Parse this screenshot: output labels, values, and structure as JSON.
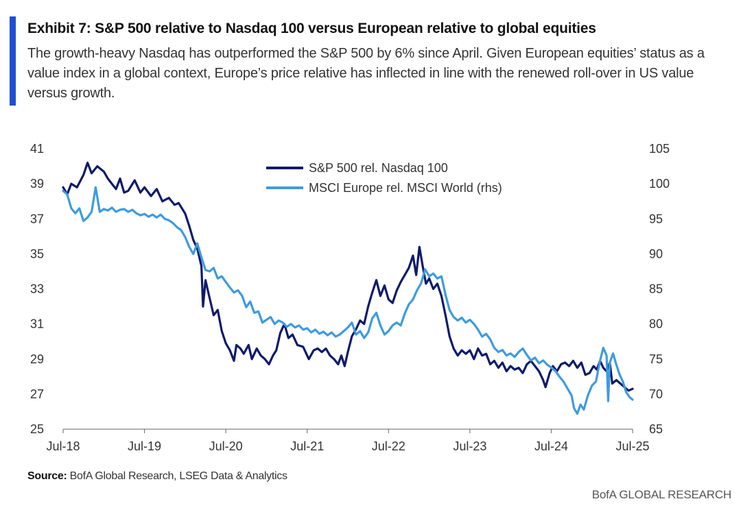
{
  "exhibit": {
    "title": "Exhibit 7: S&P 500 relative to Nasdaq 100 versus European relative to global equities",
    "subtitle": "The growth-heavy Nasdaq has outperformed the S&P 500 by 6% since April. Given European equities’ status as a value index in a global context, Europe’s price relative has inflected in line with the renewed roll-over in US value versus growth."
  },
  "footer": {
    "source_label": "Source:",
    "source_text": " BofA Global Research, LSEG Data & Analytics",
    "brand": "BofA GLOBAL RESEARCH"
  },
  "colors": {
    "accent": "#1f4fd1",
    "series_dark": "#0d1a6b",
    "series_light": "#3d9be0"
  },
  "chart_data": {
    "type": "line",
    "title": "",
    "x_start": 2018.5,
    "x_end": 2025.5,
    "x_ticks": [
      {
        "x": 2018.5,
        "label": "Jul-18"
      },
      {
        "x": 2019.5,
        "label": "Jul-19"
      },
      {
        "x": 2020.5,
        "label": "Jul-20"
      },
      {
        "x": 2021.5,
        "label": "Jul-21"
      },
      {
        "x": 2022.5,
        "label": "Jul-22"
      },
      {
        "x": 2023.5,
        "label": "Jul-23"
      },
      {
        "x": 2024.5,
        "label": "Jul-24"
      },
      {
        "x": 2025.5,
        "label": "Jul-25"
      }
    ],
    "y_left": {
      "min": 25,
      "max": 41,
      "ticks": [
        25,
        27,
        29,
        31,
        33,
        35,
        37,
        39,
        41
      ]
    },
    "y_right": {
      "min": 65,
      "max": 105,
      "ticks": [
        65,
        70,
        75,
        80,
        85,
        90,
        95,
        100,
        105
      ]
    },
    "grid": false,
    "legend_position": "top-center",
    "series": [
      {
        "name": "S&P 500 rel. Nasdaq 100",
        "axis": "left",
        "color": "#0d1a6b",
        "points": [
          [
            2018.5,
            38.8
          ],
          [
            2018.55,
            38.4
          ],
          [
            2018.6,
            39.0
          ],
          [
            2018.67,
            38.8
          ],
          [
            2018.75,
            39.5
          ],
          [
            2018.8,
            40.2
          ],
          [
            2018.85,
            39.6
          ],
          [
            2018.92,
            40.0
          ],
          [
            2019.0,
            39.7
          ],
          [
            2019.05,
            39.3
          ],
          [
            2019.1,
            39.0
          ],
          [
            2019.15,
            38.7
          ],
          [
            2019.2,
            39.3
          ],
          [
            2019.25,
            38.5
          ],
          [
            2019.3,
            38.6
          ],
          [
            2019.38,
            39.2
          ],
          [
            2019.45,
            38.5
          ],
          [
            2019.5,
            38.8
          ],
          [
            2019.58,
            38.3
          ],
          [
            2019.65,
            38.7
          ],
          [
            2019.72,
            38.0
          ],
          [
            2019.8,
            38.2
          ],
          [
            2019.87,
            37.8
          ],
          [
            2019.92,
            37.9
          ],
          [
            2020.0,
            37.3
          ],
          [
            2020.05,
            36.6
          ],
          [
            2020.1,
            35.8
          ],
          [
            2020.15,
            35.3
          ],
          [
            2020.2,
            34.3
          ],
          [
            2020.22,
            32.0
          ],
          [
            2020.25,
            33.5
          ],
          [
            2020.3,
            32.5
          ],
          [
            2020.35,
            31.5
          ],
          [
            2020.4,
            31.8
          ],
          [
            2020.45,
            30.6
          ],
          [
            2020.5,
            29.9
          ],
          [
            2020.55,
            29.5
          ],
          [
            2020.6,
            28.9
          ],
          [
            2020.63,
            29.8
          ],
          [
            2020.68,
            29.6
          ],
          [
            2020.72,
            29.3
          ],
          [
            2020.78,
            29.8
          ],
          [
            2020.82,
            29.0
          ],
          [
            2020.88,
            29.6
          ],
          [
            2020.93,
            29.2
          ],
          [
            2020.98,
            29.0
          ],
          [
            2021.03,
            28.7
          ],
          [
            2021.08,
            29.2
          ],
          [
            2021.12,
            29.5
          ],
          [
            2021.17,
            30.5
          ],
          [
            2021.22,
            31.0
          ],
          [
            2021.27,
            30.2
          ],
          [
            2021.32,
            30.4
          ],
          [
            2021.38,
            29.8
          ],
          [
            2021.45,
            29.7
          ],
          [
            2021.52,
            29.0
          ],
          [
            2021.58,
            29.5
          ],
          [
            2021.63,
            29.6
          ],
          [
            2021.68,
            29.4
          ],
          [
            2021.73,
            29.6
          ],
          [
            2021.78,
            29.2
          ],
          [
            2021.83,
            29.0
          ],
          [
            2021.88,
            28.7
          ],
          [
            2021.92,
            29.2
          ],
          [
            2021.96,
            28.6
          ],
          [
            2022.0,
            29.4
          ],
          [
            2022.05,
            30.3
          ],
          [
            2022.1,
            30.7
          ],
          [
            2022.15,
            31.2
          ],
          [
            2022.2,
            31.0
          ],
          [
            2022.25,
            32.0
          ],
          [
            2022.3,
            32.8
          ],
          [
            2022.35,
            33.5
          ],
          [
            2022.4,
            32.6
          ],
          [
            2022.45,
            33.2
          ],
          [
            2022.5,
            32.4
          ],
          [
            2022.55,
            32.2
          ],
          [
            2022.6,
            32.9
          ],
          [
            2022.65,
            33.4
          ],
          [
            2022.7,
            33.8
          ],
          [
            2022.75,
            34.2
          ],
          [
            2022.8,
            34.9
          ],
          [
            2022.84,
            33.8
          ],
          [
            2022.88,
            35.4
          ],
          [
            2022.92,
            34.3
          ],
          [
            2022.96,
            33.3
          ],
          [
            2023.0,
            33.6
          ],
          [
            2023.05,
            33.0
          ],
          [
            2023.1,
            33.3
          ],
          [
            2023.15,
            32.6
          ],
          [
            2023.2,
            31.5
          ],
          [
            2023.25,
            30.3
          ],
          [
            2023.3,
            29.6
          ],
          [
            2023.35,
            29.2
          ],
          [
            2023.4,
            29.5
          ],
          [
            2023.45,
            29.3
          ],
          [
            2023.5,
            29.5
          ],
          [
            2023.55,
            29.0
          ],
          [
            2023.6,
            29.6
          ],
          [
            2023.65,
            29.2
          ],
          [
            2023.7,
            29.3
          ],
          [
            2023.75,
            28.7
          ],
          [
            2023.8,
            28.9
          ],
          [
            2023.85,
            28.5
          ],
          [
            2023.9,
            28.8
          ],
          [
            2023.95,
            28.3
          ],
          [
            2024.0,
            28.6
          ],
          [
            2024.05,
            28.4
          ],
          [
            2024.1,
            28.5
          ],
          [
            2024.15,
            28.2
          ],
          [
            2024.2,
            28.7
          ],
          [
            2024.25,
            28.9
          ],
          [
            2024.3,
            28.6
          ],
          [
            2024.35,
            28.3
          ],
          [
            2024.4,
            27.8
          ],
          [
            2024.43,
            27.4
          ],
          [
            2024.48,
            28.2
          ],
          [
            2024.52,
            28.6
          ],
          [
            2024.57,
            28.3
          ],
          [
            2024.62,
            28.7
          ],
          [
            2024.67,
            28.8
          ],
          [
            2024.72,
            28.6
          ],
          [
            2024.77,
            28.9
          ],
          [
            2024.82,
            28.5
          ],
          [
            2024.87,
            28.8
          ],
          [
            2024.92,
            28.1
          ],
          [
            2024.97,
            28.2
          ],
          [
            2025.02,
            28.6
          ],
          [
            2025.06,
            28.4
          ],
          [
            2025.1,
            28.9
          ],
          [
            2025.14,
            28.5
          ],
          [
            2025.18,
            28.3
          ],
          [
            2025.22,
            28.8
          ],
          [
            2025.25,
            27.6
          ],
          [
            2025.3,
            27.8
          ],
          [
            2025.35,
            27.6
          ],
          [
            2025.4,
            27.4
          ],
          [
            2025.45,
            27.2
          ],
          [
            2025.5,
            27.3
          ]
        ]
      },
      {
        "name": "MSCI Europe rel. MSCI World (rhs)",
        "axis": "right",
        "color": "#3d9be0",
        "points": [
          [
            2018.5,
            99.0
          ],
          [
            2018.55,
            98.5
          ],
          [
            2018.6,
            96.5
          ],
          [
            2018.65,
            95.8
          ],
          [
            2018.7,
            96.5
          ],
          [
            2018.75,
            94.7
          ],
          [
            2018.8,
            95.2
          ],
          [
            2018.85,
            96.0
          ],
          [
            2018.9,
            99.5
          ],
          [
            2018.95,
            96.0
          ],
          [
            2019.0,
            96.4
          ],
          [
            2019.05,
            96.2
          ],
          [
            2019.1,
            96.6
          ],
          [
            2019.15,
            96.0
          ],
          [
            2019.2,
            96.3
          ],
          [
            2019.25,
            96.4
          ],
          [
            2019.3,
            96.0
          ],
          [
            2019.35,
            96.3
          ],
          [
            2019.4,
            95.8
          ],
          [
            2019.45,
            95.5
          ],
          [
            2019.5,
            95.7
          ],
          [
            2019.55,
            95.3
          ],
          [
            2019.6,
            95.6
          ],
          [
            2019.65,
            95.2
          ],
          [
            2019.7,
            95.6
          ],
          [
            2019.75,
            95.0
          ],
          [
            2019.8,
            94.8
          ],
          [
            2019.85,
            94.4
          ],
          [
            2019.9,
            93.8
          ],
          [
            2019.95,
            93.4
          ],
          [
            2020.0,
            92.4
          ],
          [
            2020.05,
            91.0
          ],
          [
            2020.1,
            90.0
          ],
          [
            2020.15,
            91.5
          ],
          [
            2020.2,
            89.5
          ],
          [
            2020.25,
            87.7
          ],
          [
            2020.3,
            87.5
          ],
          [
            2020.35,
            88.0
          ],
          [
            2020.4,
            86.5
          ],
          [
            2020.45,
            86.8
          ],
          [
            2020.5,
            86.0
          ],
          [
            2020.55,
            85.2
          ],
          [
            2020.6,
            84.5
          ],
          [
            2020.65,
            84.8
          ],
          [
            2020.7,
            84.0
          ],
          [
            2020.75,
            82.4
          ],
          [
            2020.8,
            83.2
          ],
          [
            2020.85,
            81.6
          ],
          [
            2020.9,
            81.8
          ],
          [
            2020.95,
            80.2
          ],
          [
            2021.0,
            80.6
          ],
          [
            2021.05,
            81.0
          ],
          [
            2021.1,
            80.0
          ],
          [
            2021.15,
            80.5
          ],
          [
            2021.2,
            80.2
          ],
          [
            2021.25,
            79.6
          ],
          [
            2021.3,
            80.0
          ],
          [
            2021.35,
            79.5
          ],
          [
            2021.4,
            79.8
          ],
          [
            2021.45,
            79.2
          ],
          [
            2021.5,
            79.4
          ],
          [
            2021.55,
            78.8
          ],
          [
            2021.6,
            79.2
          ],
          [
            2021.65,
            78.6
          ],
          [
            2021.7,
            78.9
          ],
          [
            2021.75,
            78.4
          ],
          [
            2021.8,
            78.8
          ],
          [
            2021.85,
            78.2
          ],
          [
            2021.9,
            78.5
          ],
          [
            2021.95,
            79.0
          ],
          [
            2022.0,
            79.5
          ],
          [
            2022.05,
            80.2
          ],
          [
            2022.1,
            78.5
          ],
          [
            2022.15,
            79.0
          ],
          [
            2022.2,
            78.0
          ],
          [
            2022.25,
            78.8
          ],
          [
            2022.3,
            80.8
          ],
          [
            2022.35,
            81.6
          ],
          [
            2022.4,
            79.8
          ],
          [
            2022.45,
            78.5
          ],
          [
            2022.5,
            79.0
          ],
          [
            2022.55,
            79.8
          ],
          [
            2022.6,
            80.2
          ],
          [
            2022.65,
            79.8
          ],
          [
            2022.7,
            81.5
          ],
          [
            2022.75,
            82.8
          ],
          [
            2022.8,
            83.5
          ],
          [
            2022.85,
            84.8
          ],
          [
            2022.9,
            85.8
          ],
          [
            2022.95,
            87.8
          ],
          [
            2023.0,
            86.8
          ],
          [
            2023.05,
            87.2
          ],
          [
            2023.1,
            86.5
          ],
          [
            2023.15,
            86.8
          ],
          [
            2023.2,
            84.2
          ],
          [
            2023.25,
            82.0
          ],
          [
            2023.3,
            81.0
          ],
          [
            2023.35,
            80.5
          ],
          [
            2023.4,
            80.9
          ],
          [
            2023.45,
            80.2
          ],
          [
            2023.5,
            80.6
          ],
          [
            2023.55,
            80.0
          ],
          [
            2023.6,
            79.2
          ],
          [
            2023.65,
            78.2
          ],
          [
            2023.7,
            78.6
          ],
          [
            2023.75,
            77.8
          ],
          [
            2023.8,
            76.6
          ],
          [
            2023.85,
            76.0
          ],
          [
            2023.9,
            76.3
          ],
          [
            2023.95,
            75.5
          ],
          [
            2024.0,
            75.8
          ],
          [
            2024.05,
            75.3
          ],
          [
            2024.1,
            76.0
          ],
          [
            2024.15,
            76.5
          ],
          [
            2024.2,
            75.6
          ],
          [
            2024.25,
            74.8
          ],
          [
            2024.3,
            75.2
          ],
          [
            2024.35,
            74.4
          ],
          [
            2024.4,
            74.8
          ],
          [
            2024.45,
            74.2
          ],
          [
            2024.5,
            73.8
          ],
          [
            2024.55,
            73.3
          ],
          [
            2024.6,
            72.5
          ],
          [
            2024.65,
            71.8
          ],
          [
            2024.7,
            70.8
          ],
          [
            2024.75,
            69.8
          ],
          [
            2024.78,
            68.0
          ],
          [
            2024.82,
            67.2
          ],
          [
            2024.86,
            68.5
          ],
          [
            2024.9,
            67.8
          ],
          [
            2024.95,
            69.8
          ],
          [
            2025.0,
            71.2
          ],
          [
            2025.05,
            71.8
          ],
          [
            2025.1,
            74.8
          ],
          [
            2025.14,
            76.6
          ],
          [
            2025.18,
            75.5
          ],
          [
            2025.2,
            69.0
          ],
          [
            2025.22,
            74.5
          ],
          [
            2025.26,
            75.8
          ],
          [
            2025.3,
            74.2
          ],
          [
            2025.34,
            72.8
          ],
          [
            2025.38,
            71.8
          ],
          [
            2025.42,
            70.3
          ],
          [
            2025.46,
            69.6
          ],
          [
            2025.5,
            69.2
          ]
        ]
      }
    ]
  }
}
